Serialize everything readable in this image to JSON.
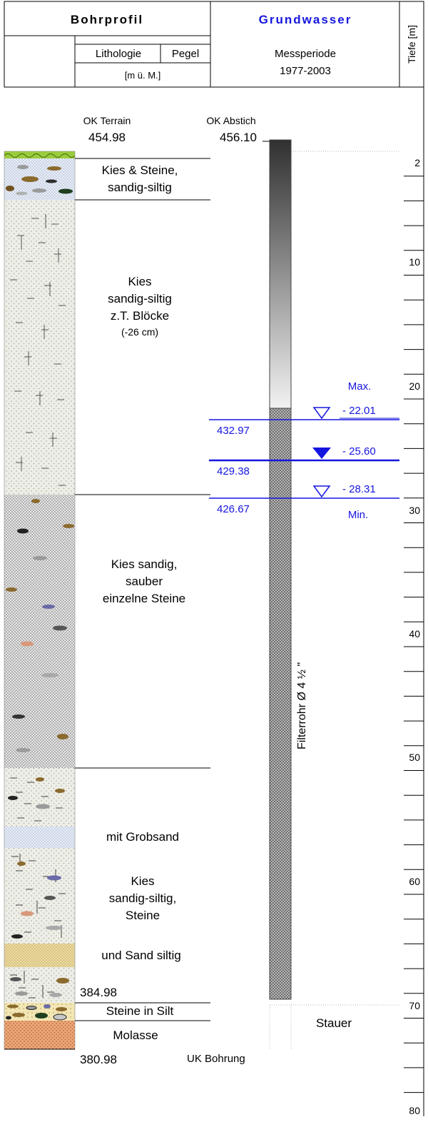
{
  "header": {
    "title_left": "Bohrprofil",
    "title_right": "Grundwasser",
    "col_lithology": "Lithologie",
    "col_pegel": "Pegel",
    "col_units": "[m ü. M.]",
    "messperiode_label": "Messperiode",
    "messperiode_years": "1977-2003",
    "depth_label": "Tiefe [m]"
  },
  "top_labels": {
    "ok_terrain_label": "OK Terrain",
    "ok_terrain_value": "454.98",
    "ok_abstich_label": "OK Abstich",
    "ok_abstich_value": "456.10"
  },
  "layers": [
    {
      "line1": "Kies & Steine,",
      "line2": "sandig-siltig"
    },
    {
      "line1": "Kies",
      "line2": "sandig-siltig",
      "line3": "z.T. Blöcke",
      "line4": "(-26 cm)"
    },
    {
      "line1": "Kies sandig,",
      "line2": "sauber",
      "line3": "einzelne Steine"
    },
    {
      "line1": "mit Grobsand"
    },
    {
      "line1": "Kies",
      "line2": "sandig-siltig,",
      "line3": "Steine"
    },
    {
      "line1": "und Sand siltig"
    },
    {
      "line1": "Steine in Silt"
    },
    {
      "line1": "Molasse"
    }
  ],
  "elevations": {
    "gravel_bottom": "384.98",
    "uk_bohrung_value": "380.98",
    "uk_bohrung_label": "UK Bohrung"
  },
  "water_levels": {
    "max_label": "Max.",
    "min_label": "Min.",
    "levels": [
      {
        "depth": "- 22.01",
        "elevation": "432.97"
      },
      {
        "depth": "- 25.60",
        "elevation": "429.38"
      },
      {
        "depth": "- 28.31",
        "elevation": "426.67"
      }
    ]
  },
  "pipe": {
    "filter_label": "Filterrohr Ø 4 ½ \""
  },
  "stauer": "Stauer",
  "depth_ticks": [
    "2",
    "10",
    "20",
    "30",
    "40",
    "50",
    "60",
    "70",
    "80"
  ],
  "colors": {
    "water": "#1515e0",
    "title_blue": "#1515e0",
    "grass_green": "#7fb82a",
    "molasse": "#e8a070"
  }
}
